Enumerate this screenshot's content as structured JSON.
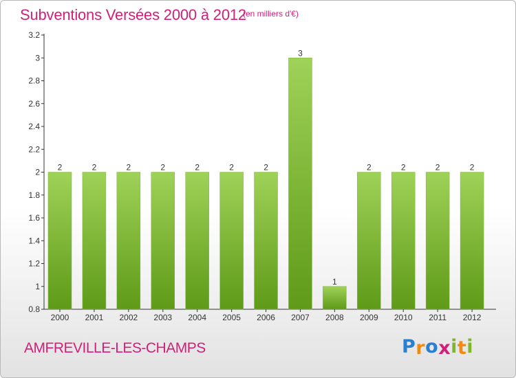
{
  "header": {
    "title": "Subventions Versées 2000 à 2012",
    "unit": "(en milliers d'€)"
  },
  "footer": {
    "commune": "AMFREVILLE-LES-CHAMPS",
    "logo_letters": [
      "P",
      "r",
      "o",
      "x",
      "i",
      "t",
      "i"
    ],
    "logo_colors": [
      "#2a7fd0",
      "#f08a12",
      "#2a7fd0",
      "#d0207a",
      "#7cb82a",
      "#f08a12",
      "#7cb82a"
    ]
  },
  "colors": {
    "title": "#d0207a",
    "bar_top": "#9ed258",
    "bar_bottom": "#5f9a18",
    "axis": "#333333"
  },
  "chart_data": {
    "type": "bar",
    "categories": [
      "2000",
      "2001",
      "2002",
      "2003",
      "2004",
      "2005",
      "2006",
      "2007",
      "2008",
      "2009",
      "2010",
      "2011",
      "2012"
    ],
    "values": [
      2,
      2,
      2,
      2,
      2,
      2,
      2,
      3,
      1,
      2,
      2,
      2,
      2
    ],
    "data_labels": [
      "2",
      "2",
      "2",
      "2",
      "2",
      "2",
      "2",
      "3",
      "1",
      "2",
      "2",
      "2",
      "2"
    ],
    "y_ticks": [
      0.8,
      1,
      1.2,
      1.4,
      1.6,
      1.8,
      2,
      2.2,
      2.4,
      2.6,
      2.8,
      3,
      3.2
    ],
    "y_tick_labels": [
      "0.8",
      "1",
      "1.2",
      "1.4",
      "1.6",
      "1.8",
      "2",
      "2.2",
      "2.4",
      "2.6",
      "2.8",
      "3",
      "3.2"
    ],
    "ylim": [
      0.8,
      3.2
    ],
    "grid": false,
    "legend": "none"
  }
}
